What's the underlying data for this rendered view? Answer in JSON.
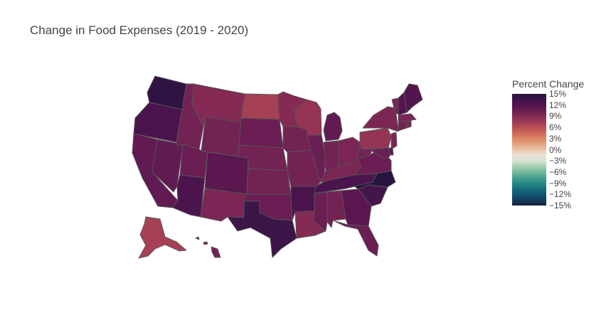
{
  "title": "Change in Food Expenses (2019 - 2020)",
  "colorbar": {
    "title": "Percent Change",
    "ticks": [
      "15%",
      "12%",
      "9%",
      "6%",
      "3%",
      "0%",
      "−3%",
      "−6%",
      "−9%",
      "−12%",
      "−15%"
    ],
    "tick_values": [
      15,
      12,
      9,
      6,
      3,
      0,
      -3,
      -6,
      -9,
      -12,
      -15
    ],
    "range": [
      -15,
      15
    ],
    "colorscale": [
      "#281440",
      "#3c1549",
      "#53144f",
      "#6a1e53",
      "#842a55",
      "#9e3955",
      "#b74f55",
      "#cd6857",
      "#dc8565",
      "#e5a37f",
      "#eac3a5",
      "#ede2d9",
      "#d7e3d1",
      "#a7cfb0",
      "#74b99b",
      "#48a18f",
      "#298985",
      "#146f7c",
      "#0f5570",
      "#153c5c",
      "#171f38"
    ]
  },
  "chart_data": {
    "type": "choropleth",
    "scope": "usa",
    "value_units": "percent change",
    "states": [
      {
        "state": "WA",
        "value": 14.5
      },
      {
        "state": "OR",
        "value": 12.5
      },
      {
        "state": "CA",
        "value": 11
      },
      {
        "state": "NV",
        "value": 11
      },
      {
        "state": "ID",
        "value": 10
      },
      {
        "state": "MT",
        "value": 9
      },
      {
        "state": "WY",
        "value": 10
      },
      {
        "state": "UT",
        "value": 10.5
      },
      {
        "state": "AZ",
        "value": 12.5
      },
      {
        "state": "CO",
        "value": 11.5
      },
      {
        "state": "NM",
        "value": 9.5
      },
      {
        "state": "ND",
        "value": 7
      },
      {
        "state": "SD",
        "value": 10.5
      },
      {
        "state": "NE",
        "value": 10
      },
      {
        "state": "KS",
        "value": 10
      },
      {
        "state": "OK",
        "value": 10.5
      },
      {
        "state": "TX",
        "value": 13.5
      },
      {
        "state": "MN",
        "value": 9
      },
      {
        "state": "IA",
        "value": 10
      },
      {
        "state": "MO",
        "value": 10
      },
      {
        "state": "AR",
        "value": 12.5
      },
      {
        "state": "LA",
        "value": 9
      },
      {
        "state": "WI",
        "value": 8
      },
      {
        "state": "IL",
        "value": 10.5
      },
      {
        "state": "MI",
        "value": 11
      },
      {
        "state": "IN",
        "value": 10
      },
      {
        "state": "OH",
        "value": 9.5
      },
      {
        "state": "KY",
        "value": 9.5
      },
      {
        "state": "TN",
        "value": 12.5
      },
      {
        "state": "MS",
        "value": 10.5
      },
      {
        "state": "AL",
        "value": 10
      },
      {
        "state": "GA",
        "value": 11.5
      },
      {
        "state": "FL",
        "value": 10.5
      },
      {
        "state": "SC",
        "value": 13
      },
      {
        "state": "NC",
        "value": 15
      },
      {
        "state": "VA",
        "value": 10.5
      },
      {
        "state": "WV",
        "value": 10
      },
      {
        "state": "PA",
        "value": 8
      },
      {
        "state": "NY",
        "value": 9.5
      },
      {
        "state": "VT",
        "value": 9.5
      },
      {
        "state": "NH",
        "value": 12
      },
      {
        "state": "ME",
        "value": 12
      },
      {
        "state": "MA",
        "value": 9.5
      },
      {
        "state": "CT",
        "value": 10
      },
      {
        "state": "RI",
        "value": 9.5
      },
      {
        "state": "NJ",
        "value": 9.5
      },
      {
        "state": "DE",
        "value": 11
      },
      {
        "state": "MD",
        "value": 10.5
      },
      {
        "state": "AK",
        "value": 7
      },
      {
        "state": "HI",
        "value": 10
      }
    ]
  }
}
